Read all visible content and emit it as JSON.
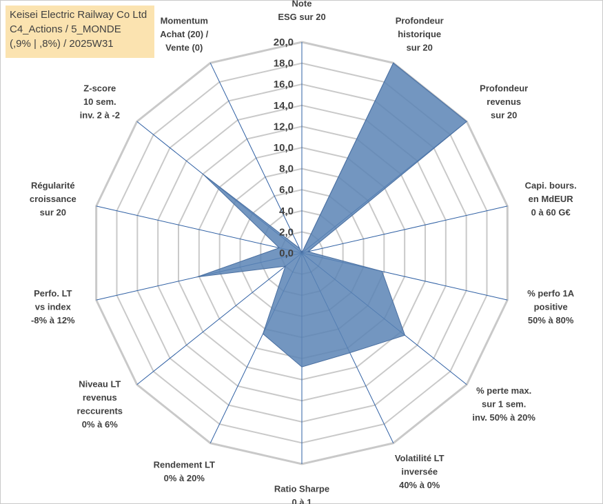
{
  "title_lines": [
    "Keisei Electric Railway Co Ltd",
    "C4_Actions / 5_MONDE",
    "(,9% | ,8%) / 2025W31"
  ],
  "colors": {
    "fill": "#5b84b5",
    "stroke": "#4a6fa0",
    "spoke": "#2e5fa3",
    "grid": "#c9c9c9",
    "title_bg": "#fbe3b0",
    "text": "#404040"
  },
  "chart_data": {
    "type": "radar",
    "rlim": [
      0,
      20
    ],
    "tick_step": 2,
    "tick_labels": [
      "0,0",
      "2,0",
      "4,0",
      "6,0",
      "8,0",
      "10,0",
      "12,0",
      "14,0",
      "16,0",
      "18,0",
      "20,0"
    ],
    "axes": [
      {
        "label": [
          "Note",
          "ESG sur 20"
        ],
        "value": 0
      },
      {
        "label": [
          "Profondeur",
          "historique",
          "sur 20"
        ],
        "value": 20
      },
      {
        "label": [
          "Profondeur",
          "revenus",
          "sur 20"
        ],
        "value": 20
      },
      {
        "label": [
          "Capi. bours.",
          "en MdEUR",
          "0 à 60 G€"
        ],
        "value": 0.6
      },
      {
        "label": [
          "% perfo 1A",
          "positive",
          "50% à 80%"
        ],
        "value": 7.8
      },
      {
        "label": [
          "% perte max.",
          "sur 1 sem.",
          "inv. 50% à 20%"
        ],
        "value": 12.5
      },
      {
        "label": [
          "Volatilité LT",
          "inversée",
          "40% à 0%"
        ],
        "value": 10.5
      },
      {
        "label": [
          "Ratio Sharpe",
          "0 à 1"
        ],
        "value": 10.8
      },
      {
        "label": [
          "Rendement LT",
          "0% à 20%"
        ],
        "value": 8.5
      },
      {
        "label": [
          "Niveau LT",
          "revenus",
          "reccurents",
          "0% à 6%"
        ],
        "value": 2.0
      },
      {
        "label": [
          "Perfo. LT",
          "vs index",
          "-8% à 12%"
        ],
        "value": 10.2
      },
      {
        "label": [
          "Régularité",
          "croissance",
          "sur 20"
        ],
        "value": 2.2
      },
      {
        "label": [
          "Z-score",
          "10 sem.",
          "inv. 2 à -2"
        ],
        "value": 12.0
      },
      {
        "label": [
          "Momentum",
          "Achat (20) /",
          "Vente (0)"
        ],
        "value": 0.5
      }
    ]
  }
}
